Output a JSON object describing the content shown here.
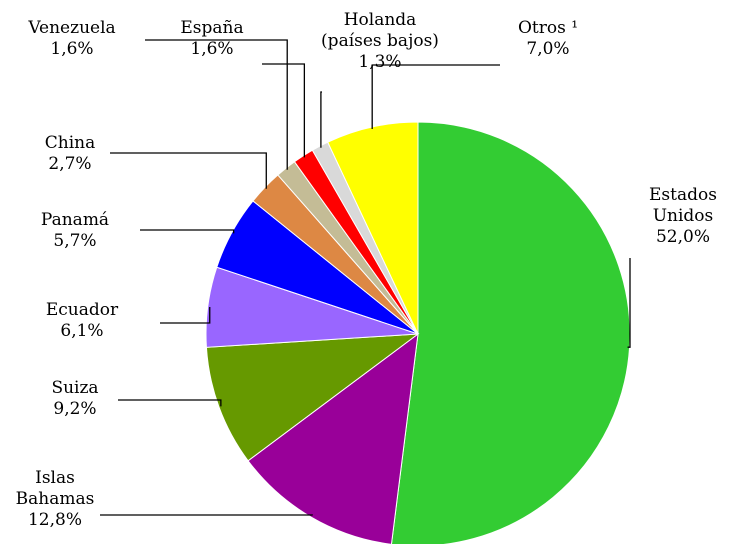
{
  "chart_data": {
    "type": "pie",
    "categories": [
      "Estados\nUnidos",
      "Islas\nBahamas",
      "Suiza",
      "Ecuador",
      "Panamá",
      "China",
      "Venezuela",
      "España",
      "Holanda\n(países bajos)",
      "Otros ¹"
    ],
    "values": [
      52.0,
      12.8,
      9.2,
      6.1,
      5.7,
      2.7,
      1.6,
      1.6,
      1.3,
      7.0
    ],
    "value_labels": [
      "52,0%",
      "12,8%",
      "9,2%",
      "6,1%",
      "5,7%",
      "2,7%",
      "1,6%",
      "1,6%",
      "1,3%",
      "7,0%"
    ],
    "colors": [
      "#33cc33",
      "#990099",
      "#669900",
      "#9966ff",
      "#0000ff",
      "#dd8844",
      "#c4bc96",
      "#ff0000",
      "#d9d9d9",
      "#ffff00"
    ]
  }
}
